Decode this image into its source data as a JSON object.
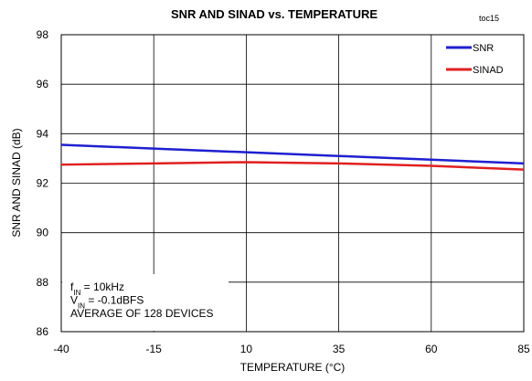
{
  "chart_data": {
    "type": "line",
    "title": "SNR AND SINAD vs. TEMPERATURE",
    "chart_id": "toc15",
    "x_label": "TEMPERATURE (°C)",
    "y_label": "SNR AND SINAD (dB)",
    "x": [
      -40,
      -15,
      10,
      35,
      60,
      85
    ],
    "series": [
      {
        "name": "SNR",
        "color": "#1f1fd0",
        "values": [
          93.55,
          93.4,
          93.25,
          93.1,
          92.95,
          92.8
        ]
      },
      {
        "name": "SINAD",
        "color": "#e02020",
        "values": [
          92.75,
          92.8,
          92.85,
          92.8,
          92.7,
          92.55
        ]
      }
    ],
    "xlim": [
      -40,
      85
    ],
    "xticks": [
      -40,
      -15,
      10,
      35,
      60,
      85
    ],
    "ylim": [
      86,
      98
    ],
    "yticks": [
      86,
      88,
      90,
      92,
      94,
      96,
      98
    ],
    "grid": true,
    "legend": "upper right",
    "annotation": [
      [
        "f",
        "IN",
        " = 10kHz"
      ],
      [
        "V",
        "IN",
        " = -0.1dBFS"
      ],
      [
        "AVERAGE OF 128 DEVICES"
      ]
    ]
  }
}
